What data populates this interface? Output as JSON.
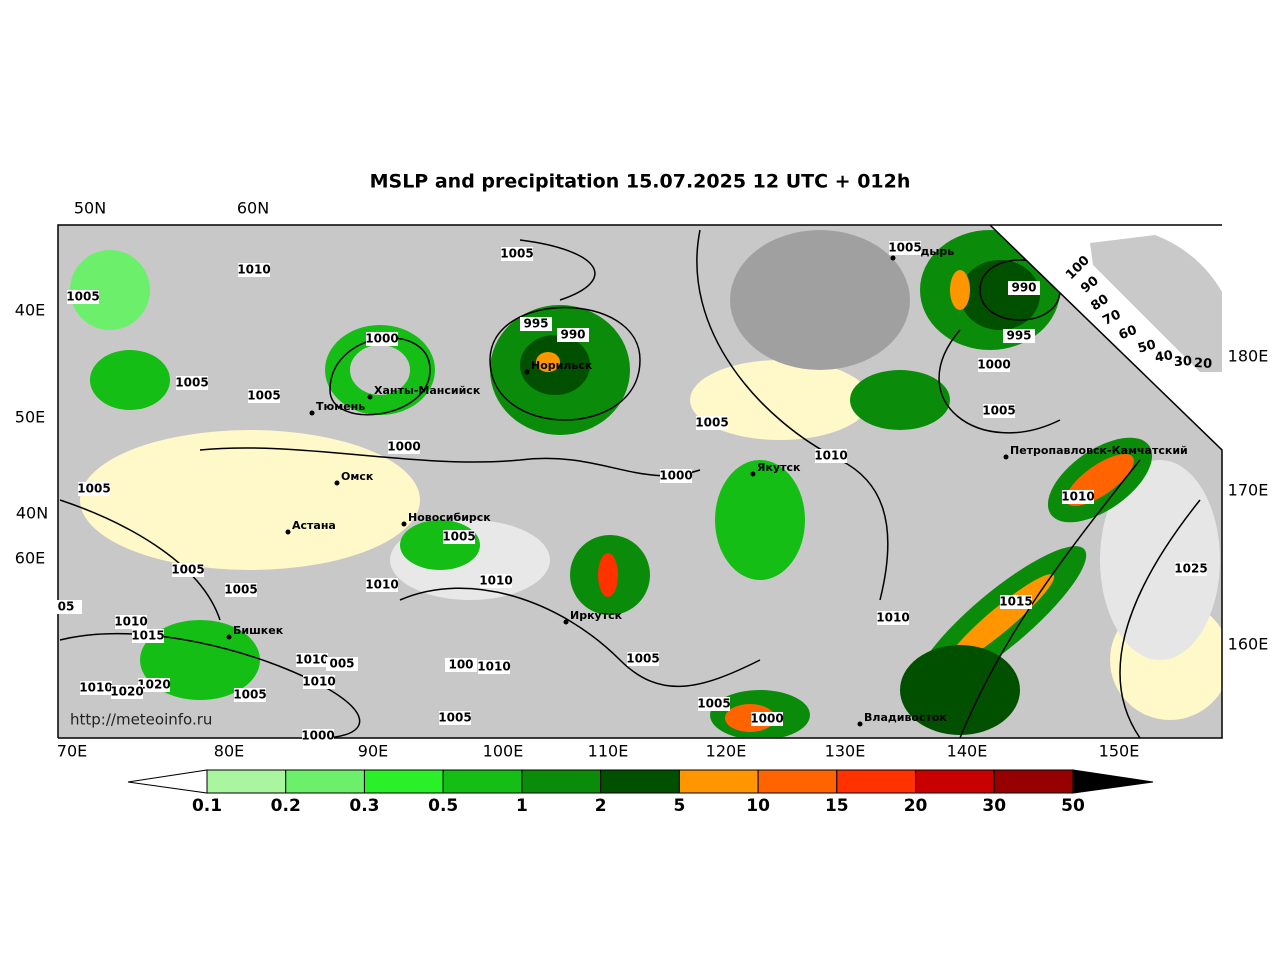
{
  "title": "MSLP and precipitation 15.07.2025 12 UTC + 012h",
  "map": {
    "top_labels": [
      "50N",
      "60N"
    ],
    "left_labels": [
      "40E",
      "50E",
      "40N",
      "60E"
    ],
    "bottom_labels": [
      "70E",
      "80E",
      "90E",
      "100E",
      "110E",
      "120E",
      "130E",
      "140E",
      "150E"
    ],
    "right_labels": [
      "180E",
      "170E",
      "160E"
    ],
    "wheel_labels": [
      "100",
      "90",
      "80",
      "70",
      "60",
      "50",
      "40",
      "30",
      "20"
    ],
    "cities": [
      "Норильск",
      "Ханты-Мансийск",
      "Тюмень",
      "Омск",
      "Новосибирск",
      "Астана",
      "Бишкек",
      "Иркутск",
      "Якутск",
      "Анадырь",
      "Петропавловск-Камчатский",
      "Владивосток"
    ],
    "isobar_labels": [
      "1005",
      "1010",
      "1005",
      "995",
      "990",
      "1000",
      "1005",
      "1005",
      "1000",
      "1005",
      "1010",
      "1000",
      "1005",
      "1005",
      "1005",
      "1005",
      "1010",
      "1010",
      "05",
      "1010",
      "1015",
      "1010",
      "005",
      "100",
      "1010",
      "1005",
      "1010",
      "1020",
      "1020",
      "1005",
      "1010",
      "1005",
      "1000",
      "1005",
      "1000",
      "1010",
      "1015",
      "1025",
      "1010",
      "1005",
      "990",
      "995",
      "1000",
      "1005"
    ],
    "credit": "http://meteoinfo.ru"
  },
  "colorbar": {
    "ticks": [
      0.1,
      0.2,
      0.3,
      0.5,
      1,
      2,
      5,
      10,
      15,
      20,
      30,
      50
    ],
    "colors": [
      "#aaf5a0",
      "#6cf06c",
      "#2af02a",
      "#14be14",
      "#0a8c0a",
      "#005000",
      "#ff9600",
      "#ff6400",
      "#ff3200",
      "#c80000",
      "#960000"
    ]
  }
}
